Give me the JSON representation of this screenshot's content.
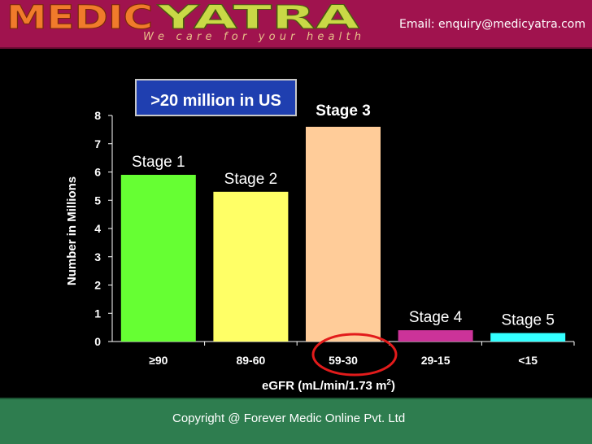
{
  "header": {
    "brand_left": "MEDIC",
    "brand_right": "YATRA",
    "tagline": "We care for your health",
    "email": "Email: enquiry@medicyatra.com",
    "brand_left_color": "#f07b2b",
    "brand_right_color": "#c9d946"
  },
  "footer": {
    "copyright": "Copyright @ Forever Medic Online Pvt. Ltd"
  },
  "chart_data": {
    "type": "bar",
    "categories": [
      "≥90",
      "89-60",
      "59-30",
      "29-15",
      "<15"
    ],
    "values": [
      5.9,
      5.3,
      7.6,
      0.4,
      0.3
    ],
    "bar_labels": [
      "Stage 1",
      "Stage 2",
      "Stage 3",
      "Stage 4",
      "Stage 5"
    ],
    "bar_colors": [
      "#66ff33",
      "#ffff66",
      "#ffcc99",
      "#cc3399",
      "#33ffff"
    ],
    "ylim": [
      0,
      8
    ],
    "yticks": [
      "0",
      "1",
      "2",
      "3",
      "4",
      "5",
      "6",
      "7",
      "8"
    ],
    "ylabel": "Number in Millions",
    "xlabel_main": "eGFR (mL/min/1.73 m",
    "xlabel_sup": "2",
    "xlabel_end": ")",
    "annotation_box": ">20 million in US",
    "highlighted_category": "59-30",
    "grid": false
  }
}
